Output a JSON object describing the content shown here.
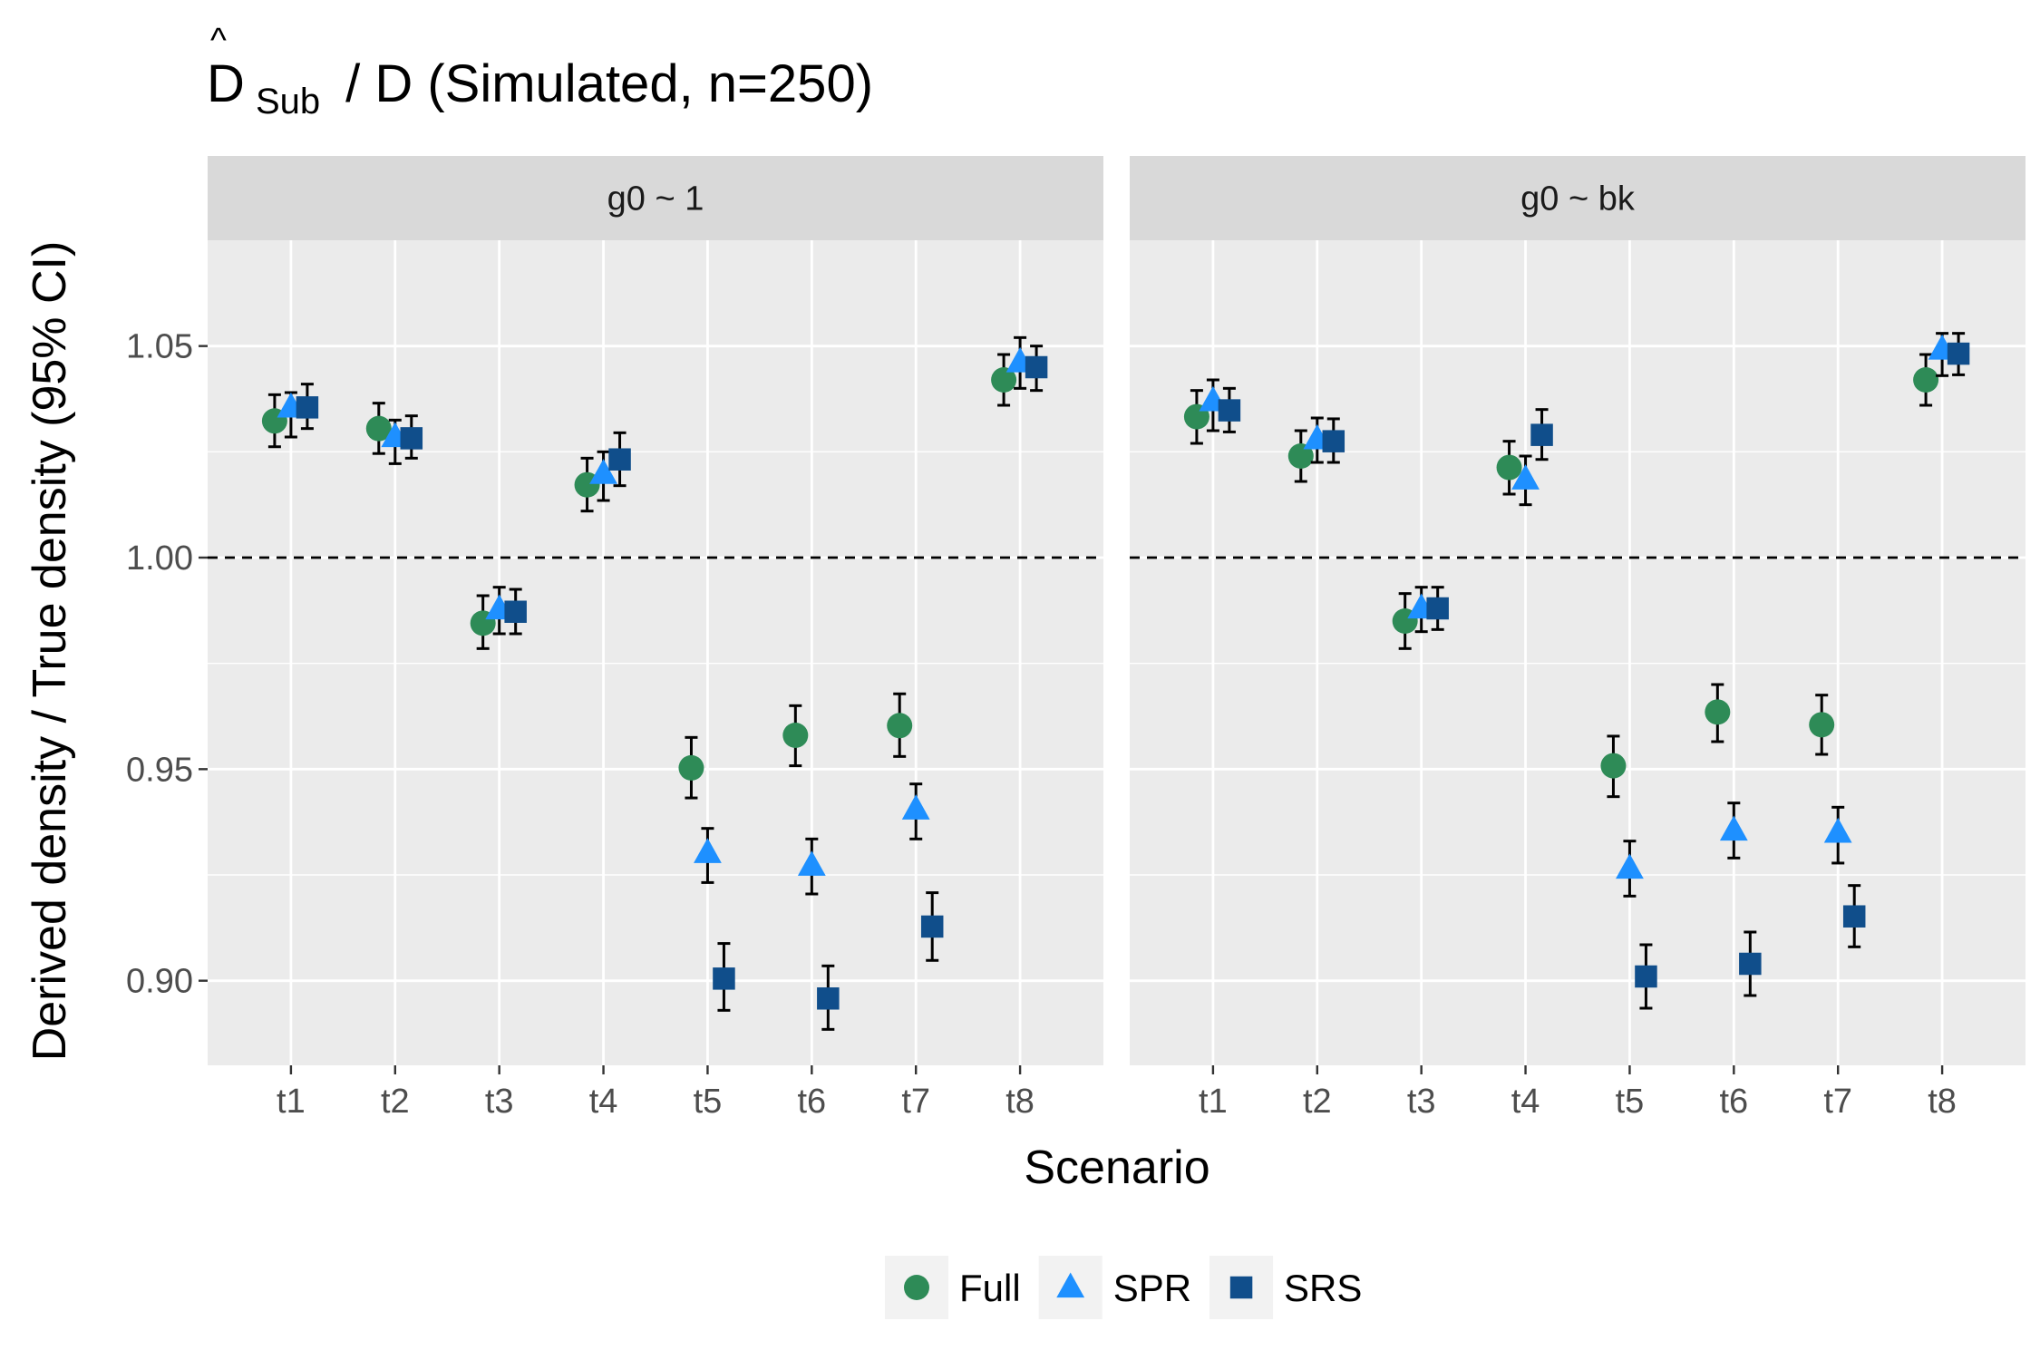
{
  "chart_data": {
    "type": "scatter",
    "title": {
      "hat_symbol": "^",
      "letter": "D",
      "subscript": "Sub",
      "rest": " / D (Simulated, n=250)"
    },
    "xlabel": "Scenario",
    "ylabel": "Derived density / True density (95% CI)",
    "ylim": [
      0.88,
      1.075
    ],
    "y_ticks": [
      0.9,
      0.95,
      1.0,
      1.05
    ],
    "y_tick_labels": [
      "0.90",
      "0.95",
      "1.00",
      "1.05"
    ],
    "reference_line": 1.0,
    "categories": [
      "t1",
      "t2",
      "t3",
      "t4",
      "t5",
      "t6",
      "t7",
      "t8"
    ],
    "legend": {
      "position": "bottom",
      "entries": [
        {
          "name": "Full",
          "shape": "circle",
          "color": "#2e8b57"
        },
        {
          "name": "SPR",
          "shape": "triangle",
          "color": "#1e90ff"
        },
        {
          "name": "SRS",
          "shape": "square",
          "color": "#104e8b"
        }
      ]
    },
    "panels": [
      {
        "strip_label": "g0 ~ 1",
        "series": [
          {
            "name": "Full",
            "values": [
              1.0323,
              1.0305,
              0.9845,
              1.0172,
              0.9503,
              0.958,
              0.9603,
              1.042
            ],
            "lower": [
              1.0262,
              1.0246,
              0.9785,
              1.011,
              0.9432,
              0.9508,
              0.953,
              1.036
            ],
            "upper": [
              1.0385,
              1.0365,
              0.991,
              1.0235,
              0.9575,
              0.965,
              0.9678,
              1.048
            ]
          },
          {
            "name": "SPR",
            "values": [
              1.0355,
              1.0285,
              0.9878,
              1.0198,
              0.9302,
              0.9272,
              0.9405,
              1.0462
            ],
            "lower": [
              1.0285,
              1.0222,
              0.982,
              1.0135,
              0.9232,
              0.9205,
              0.9335,
              1.04
            ],
            "upper": [
              1.039,
              1.0325,
              0.993,
              1.025,
              0.936,
              0.9335,
              0.9465,
              1.052
            ]
          },
          {
            "name": "SRS",
            "values": [
              1.0355,
              1.0282,
              0.9872,
              1.0232,
              0.9005,
              0.8958,
              0.9128,
              1.045
            ],
            "lower": [
              1.0305,
              1.0235,
              0.982,
              1.017,
              0.893,
              0.8885,
              0.9048,
              1.0395
            ],
            "upper": [
              1.041,
              1.0335,
              0.9925,
              1.0295,
              0.9088,
              0.9035,
              0.9208,
              1.05
            ]
          }
        ]
      },
      {
        "strip_label": "g0 ~ bk",
        "series": [
          {
            "name": "Full",
            "values": [
              1.0333,
              1.024,
              0.985,
              1.0213,
              0.9508,
              0.9635,
              0.9605,
              1.042
            ],
            "lower": [
              1.027,
              1.018,
              0.9785,
              1.015,
              0.9435,
              0.9565,
              0.9535,
              1.036
            ],
            "upper": [
              1.0395,
              1.03,
              0.9915,
              1.0275,
              0.9578,
              0.97,
              0.9675,
              1.048
            ]
          },
          {
            "name": "SPR",
            "values": [
              1.037,
              1.028,
              0.988,
              1.0185,
              0.9265,
              0.9355,
              0.935,
              1.0492
            ],
            "lower": [
              1.03,
              1.0225,
              0.9825,
              1.0125,
              0.92,
              0.929,
              0.9278,
              1.043
            ],
            "upper": [
              1.042,
              1.033,
              0.993,
              1.024,
              0.933,
              0.942,
              0.941,
              1.053
            ]
          },
          {
            "name": "SRS",
            "values": [
              1.0348,
              1.0275,
              0.988,
              1.029,
              0.901,
              0.904,
              0.9152,
              1.0482
            ],
            "lower": [
              1.0297,
              1.0225,
              0.983,
              1.0232,
              0.8935,
              0.8965,
              0.908,
              1.0432
            ],
            "upper": [
              1.04,
              1.0328,
              0.993,
              1.035,
              0.9085,
              0.9115,
              0.9225,
              1.053
            ]
          }
        ]
      }
    ]
  }
}
